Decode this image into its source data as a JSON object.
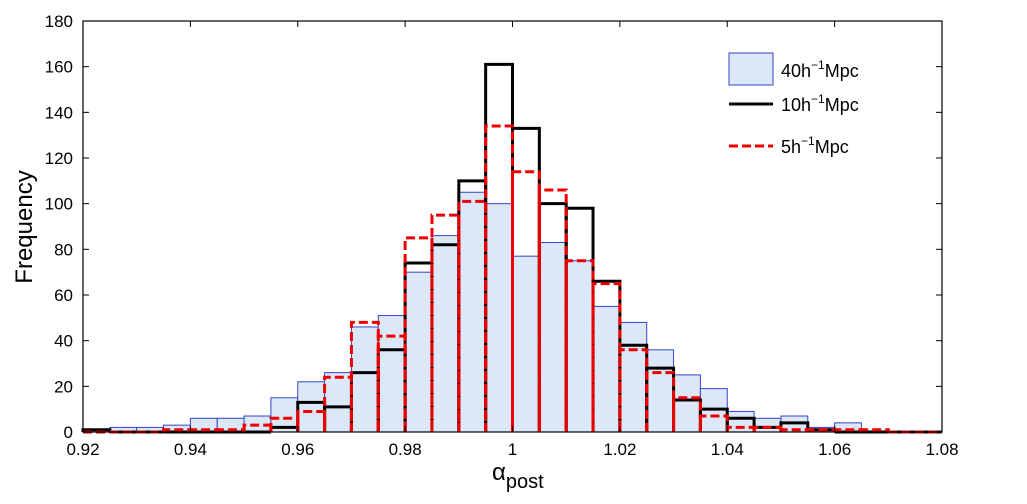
{
  "chart_data": {
    "type": "bar",
    "subtype": "histogram",
    "title": "",
    "xlabel": "α",
    "xlabel_subscript": "post",
    "ylabel": "Frequency",
    "xlim": [
      0.92,
      1.08
    ],
    "ylim": [
      0,
      180
    ],
    "x_ticks": [
      "0.92",
      "0.94",
      "0.96",
      "0.98",
      "1",
      "1.02",
      "1.04",
      "1.06",
      "1.08"
    ],
    "y_ticks": [
      "0",
      "20",
      "40",
      "60",
      "80",
      "100",
      "120",
      "140",
      "160",
      "180"
    ],
    "bin_width": 0.005,
    "bin_starts": [
      0.92,
      0.925,
      0.93,
      0.935,
      0.94,
      0.945,
      0.95,
      0.955,
      0.96,
      0.965,
      0.97,
      0.975,
      0.98,
      0.985,
      0.99,
      0.995,
      1.0,
      1.005,
      1.01,
      1.015,
      1.02,
      1.025,
      1.03,
      1.035,
      1.04,
      1.045,
      1.05,
      1.055,
      1.06,
      1.065,
      1.07,
      1.075
    ],
    "series": [
      {
        "name": "40h⁻¹Mpc",
        "legend_main": "40h",
        "legend_sup": "−1",
        "legend_tail": "Mpc",
        "style": "filled-bar",
        "fill": "#dce8f8",
        "stroke": "#3344cc",
        "values": [
          1,
          2,
          2,
          3,
          6,
          6,
          7,
          15,
          22,
          26,
          46,
          51,
          70,
          86,
          105,
          100,
          77,
          83,
          75,
          55,
          48,
          36,
          25,
          19,
          9,
          6,
          7,
          2,
          4,
          0,
          0,
          0
        ]
      },
      {
        "name": "10h⁻¹Mpc",
        "legend_main": "10h",
        "legend_sup": "−1",
        "legend_tail": "Mpc",
        "style": "solid-step",
        "stroke": "#000000",
        "values": [
          1,
          0,
          0,
          0,
          0,
          0,
          0,
          2,
          13,
          11,
          26,
          36,
          74,
          82,
          110,
          161,
          133,
          100,
          98,
          66,
          38,
          28,
          14,
          10,
          6,
          2,
          4,
          1,
          0,
          0,
          0,
          0
        ]
      },
      {
        "name": "5h⁻¹Mpc",
        "legend_main": "5h",
        "legend_sup": "−1",
        "legend_tail": "Mpc",
        "style": "dashed-step",
        "stroke": "#ee0000",
        "values": [
          0,
          0,
          0,
          1,
          1,
          1,
          3,
          6,
          9,
          24,
          48,
          42,
          85,
          95,
          101,
          134,
          114,
          106,
          75,
          65,
          36,
          26,
          15,
          7,
          2,
          2,
          1,
          1,
          1,
          1,
          0,
          0
        ]
      }
    ],
    "legend_position": "top-right",
    "grid": false
  }
}
